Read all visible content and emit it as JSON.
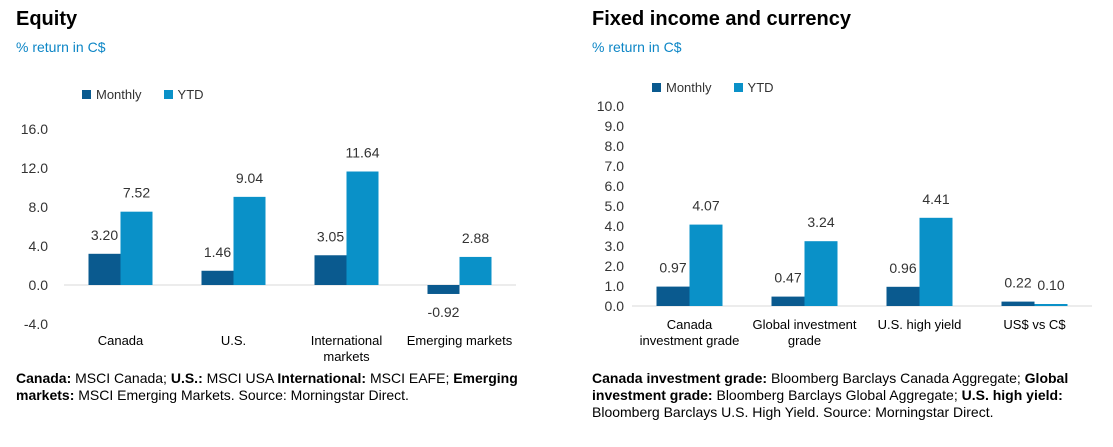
{
  "colors": {
    "monthly": "#0a5a8f",
    "ytd": "#0a91c8",
    "axis": "#d9d9d9",
    "accent": "#0d86c6"
  },
  "left": {
    "title": "Equity",
    "subtitle": "% return in C$",
    "legend": [
      "Monthly",
      "YTD"
    ],
    "footnote": [
      {
        "b": "Canada:",
        "t": " MSCI Canada; "
      },
      {
        "b": "U.S.:",
        "t": " MSCI USA "
      },
      {
        "b": "International:",
        "t": " MSCI EAFE; "
      },
      {
        "b": "Emerging markets:",
        "t": " MSCI Emerging Markets. Source: Morningstar Direct."
      }
    ]
  },
  "right": {
    "title": "Fixed income and currency",
    "subtitle": "% return in C$",
    "legend": [
      "Monthly",
      "YTD"
    ],
    "footnote": [
      {
        "b": "Canada investment grade:",
        "t": " Bloomberg Barclays Canada Aggregate; "
      },
      {
        "b": "Global investment grade:",
        "t": " Bloomberg Barclays Global Aggregate; "
      },
      {
        "b": "U.S. high yield:",
        "t": " Bloomberg Barclays U.S. High Yield. Source: Morningstar Direct."
      }
    ]
  },
  "chart_data": [
    {
      "type": "bar",
      "title": "Equity",
      "subtitle": "% return in C$",
      "categories": [
        [
          "Canada"
        ],
        [
          "U.S."
        ],
        [
          "International",
          "markets"
        ],
        [
          "Emerging markets"
        ]
      ],
      "series": [
        {
          "name": "Monthly",
          "values": [
            3.2,
            1.46,
            3.05,
            -0.92
          ],
          "labels": [
            "3.20",
            "1.46",
            "3.05",
            "-0.92"
          ]
        },
        {
          "name": "YTD",
          "values": [
            7.52,
            9.04,
            11.64,
            2.88
          ],
          "labels": [
            "7.52",
            "9.04",
            "11.64",
            "2.88"
          ]
        }
      ],
      "ylim": [
        -4.0,
        16.0
      ],
      "yticks": [
        "16.0",
        "12.0",
        "8.0",
        "4.0",
        "0.0",
        "-4.0"
      ],
      "grid": false,
      "legend": "top-left"
    },
    {
      "type": "bar",
      "title": "Fixed income and currency",
      "subtitle": "% return in C$",
      "categories": [
        [
          "Canada",
          "investment grade"
        ],
        [
          "Global investment",
          "grade"
        ],
        [
          "U.S. high yield"
        ],
        [
          "US$ vs C$"
        ]
      ],
      "series": [
        {
          "name": "Monthly",
          "values": [
            0.97,
            0.47,
            0.96,
            0.22
          ],
          "labels": [
            "0.97",
            "0.47",
            "0.96",
            "0.22"
          ]
        },
        {
          "name": "YTD",
          "values": [
            4.07,
            3.24,
            4.41,
            0.1
          ],
          "labels": [
            "4.07",
            "3.24",
            "4.41",
            "0.10"
          ]
        }
      ],
      "ylim": [
        0.0,
        10.0
      ],
      "yticks": [
        "10.0",
        "9.0",
        "8.0",
        "7.0",
        "6.0",
        "5.0",
        "4.0",
        "3.0",
        "2.0",
        "1.0",
        "0.0"
      ],
      "grid": false,
      "legend": "top-left"
    }
  ]
}
